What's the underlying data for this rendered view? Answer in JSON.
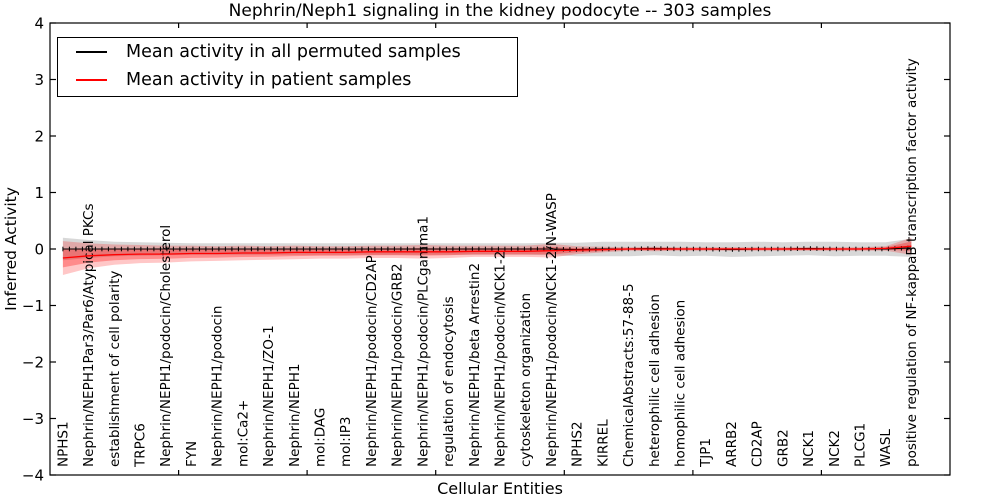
{
  "figure": {
    "title": "Nephrin/Neph1 signaling in the kidney podocyte -- 303 samples",
    "xlabel": "Cellular Entities",
    "ylabel": "Inferred Activity"
  },
  "legend": {
    "items": [
      {
        "label": "Mean activity in all permuted samples",
        "color": "#000000"
      },
      {
        "label": "Mean activity in patient samples",
        "color": "#ff0000"
      }
    ]
  },
  "colors": {
    "permuted_line": "#000000",
    "patient_line": "#ff0000",
    "permuted_band": "#999999",
    "patient_band": "#ff0000",
    "frame": "#000000",
    "background": "#ffffff"
  },
  "chart_data": {
    "type": "line",
    "title": "Nephrin/Neph1 signaling in the kidney podocyte -- 303 samples",
    "xlabel": "Cellular Entities",
    "ylabel": "Inferred Activity",
    "ylim": [
      -4,
      4
    ],
    "yticks": [
      4,
      3,
      2,
      1,
      0,
      -1,
      -2,
      -3,
      -4
    ],
    "grid": false,
    "legend_position": "upper left",
    "categories": [
      "NPHS1",
      "Nephrin/NEPH1Par3/Par6/Atypical PKCs",
      "establishment of cell polarity",
      "TRPC6",
      "Nephrin/NEPH1/podocin/Cholesterol",
      "FYN",
      "Nephrin/NEPH1/podocin",
      "mol:Ca2+",
      "Nephrin/NEPH1/ZO-1",
      "Nephrin/NEPH1",
      "mol:DAG",
      "mol:IP3",
      "Nephrin/NEPH1/podocin/CD2AP",
      "Nephrin/NEPH1/podocin/GRB2",
      "Nephrin/NEPH1/podocin/PLCgamma1",
      "regulation of endocytosis",
      "Nephrin/NEPH1/beta Arrestin2",
      "Nephrin/NEPH1/podocin/NCK1-2",
      "cytoskeleton organization",
      "Nephrin/NEPH1/podocin/NCK1-2/N-WASP",
      "NPHS2",
      "KIRREL",
      "ChemicalAbstracts:57-88-5",
      "heterophilic cell adhesion",
      "homophilic cell adhesion",
      "TJP1",
      "ARRB2",
      "CD2AP",
      "GRB2",
      "NCK1",
      "NCK2",
      "PLCG1",
      "WASL",
      "positive regulation of NF-kappaB transcription factor activity"
    ],
    "series": [
      {
        "name": "Mean activity in all permuted samples",
        "color": "#000000",
        "values": [
          0,
          0,
          0,
          0,
          0,
          0,
          0,
          0,
          0,
          0,
          0,
          0,
          0,
          0,
          0,
          0,
          0,
          0,
          0,
          0,
          -0.01,
          0,
          0,
          0.01,
          0,
          0,
          -0.01,
          0,
          0,
          0.01,
          0,
          0,
          0,
          0.02
        ],
        "band_halfwidth": [
          0.2,
          0.16,
          0.13,
          0.12,
          0.11,
          0.1,
          0.1,
          0.1,
          0.1,
          0.1,
          0.1,
          0.1,
          0.1,
          0.1,
          0.1,
          0.1,
          0.1,
          0.1,
          0.1,
          0.11,
          0.12,
          0.13,
          0.13,
          0.12,
          0.13,
          0.12,
          0.13,
          0.13,
          0.12,
          0.12,
          0.13,
          0.12,
          0.12,
          0.16
        ]
      },
      {
        "name": "Mean activity in patient samples",
        "color": "#ff0000",
        "values": [
          -0.16,
          -0.12,
          -0.1,
          -0.09,
          -0.09,
          -0.08,
          -0.08,
          -0.07,
          -0.07,
          -0.06,
          -0.06,
          -0.06,
          -0.05,
          -0.05,
          -0.05,
          -0.05,
          -0.04,
          -0.04,
          -0.04,
          -0.03,
          -0.02,
          -0.01,
          0,
          0,
          0,
          0,
          0,
          0,
          0,
          0,
          0,
          0,
          0.01,
          0.05
        ],
        "band_halfwidth": [
          0.3,
          0.22,
          0.18,
          0.16,
          0.15,
          0.14,
          0.13,
          0.13,
          0.12,
          0.12,
          0.11,
          0.11,
          0.11,
          0.11,
          0.12,
          0.11,
          0.1,
          0.1,
          0.1,
          0.12,
          0.07,
          0.05,
          0.03,
          0.04,
          0.03,
          0.03,
          0.03,
          0.03,
          0.03,
          0.03,
          0.03,
          0.03,
          0.04,
          0.15
        ]
      }
    ]
  }
}
